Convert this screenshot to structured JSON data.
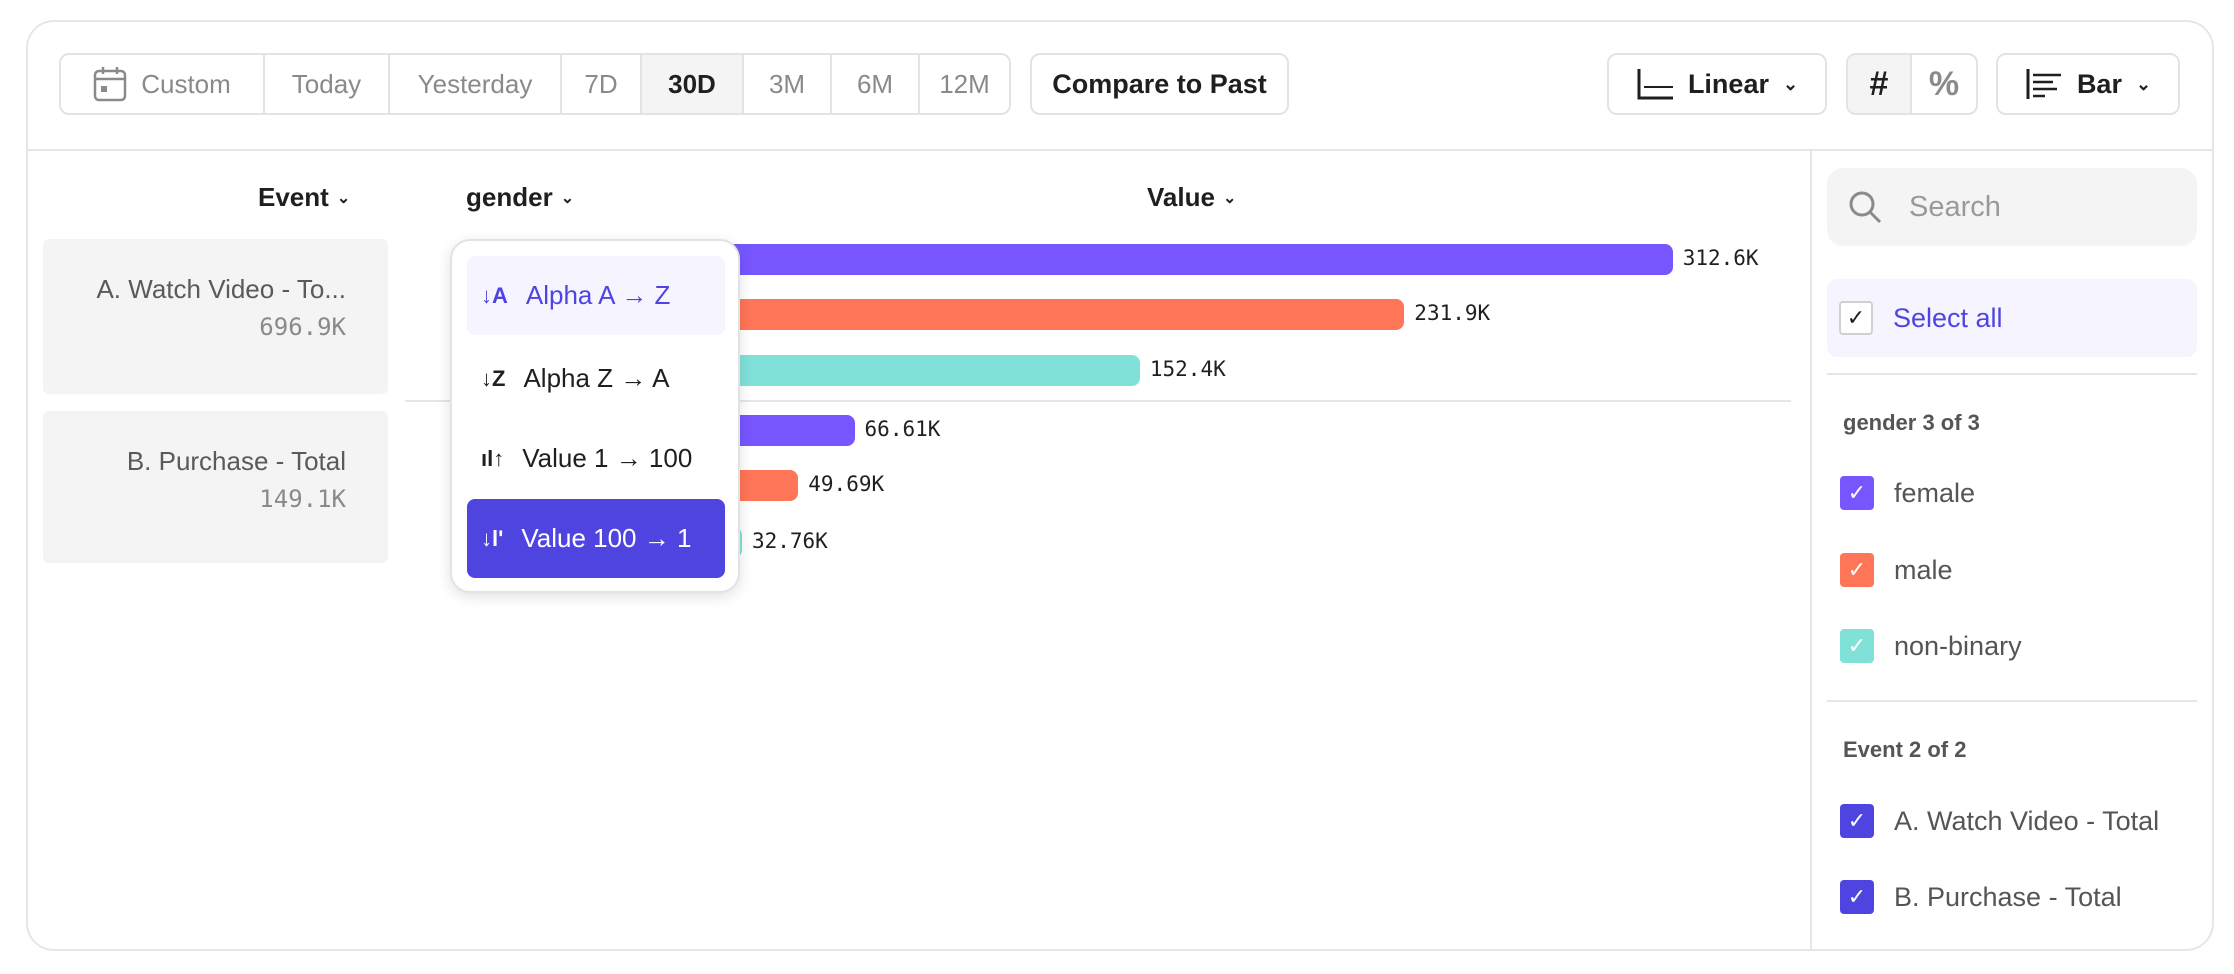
{
  "toolbar": {
    "date_ranges": [
      "Custom",
      "Today",
      "Yesterday",
      "7D",
      "30D",
      "3M",
      "6M",
      "12M"
    ],
    "selected_range": "30D",
    "compare": "Compare to Past",
    "scale": "Linear",
    "number_mode": "#",
    "percent_mode": "%",
    "chart_type": "Bar"
  },
  "columns": {
    "event": "Event",
    "gender": "gender",
    "value": "Value"
  },
  "events": [
    {
      "name": "A. Watch Video - To...",
      "total": "696.9K"
    },
    {
      "name": "B. Purchase - Total",
      "total": "149.1K"
    }
  ],
  "bars": [
    {
      "event": "A",
      "gender": "female",
      "value": 312.6,
      "label": "312.6K"
    },
    {
      "event": "A",
      "gender": "male",
      "value": 231.9,
      "label": "231.9K"
    },
    {
      "event": "A",
      "gender": "non-binary",
      "value": 152.4,
      "label": "152.4K"
    },
    {
      "event": "B",
      "gender": "female",
      "value": 66.61,
      "label": "66.61K"
    },
    {
      "event": "B",
      "gender": "male",
      "value": 49.69,
      "label": "49.69K"
    },
    {
      "event": "B",
      "gender": "non-binary",
      "value": 32.76,
      "label": "32.76K"
    }
  ],
  "sort_menu": {
    "items": [
      "Alpha A → Z",
      "Alpha Z → A",
      "Value 1 → 100",
      "Value 100 → 1"
    ],
    "hovered": "Alpha A → Z",
    "selected": "Value 100 → 1"
  },
  "filter_panel": {
    "search_placeholder": "Search",
    "select_all": "Select all",
    "gender_header": "gender 3 of 3",
    "genders": [
      "female",
      "male",
      "non-binary"
    ],
    "event_header": "Event 2 of 2",
    "events": [
      "A. Watch Video - Total",
      "B. Purchase - Total"
    ]
  },
  "colors": {
    "female": "#7856ff",
    "male": "#ff7557",
    "non-binary": "#80e1d9",
    "accent": "#4f44e0"
  }
}
